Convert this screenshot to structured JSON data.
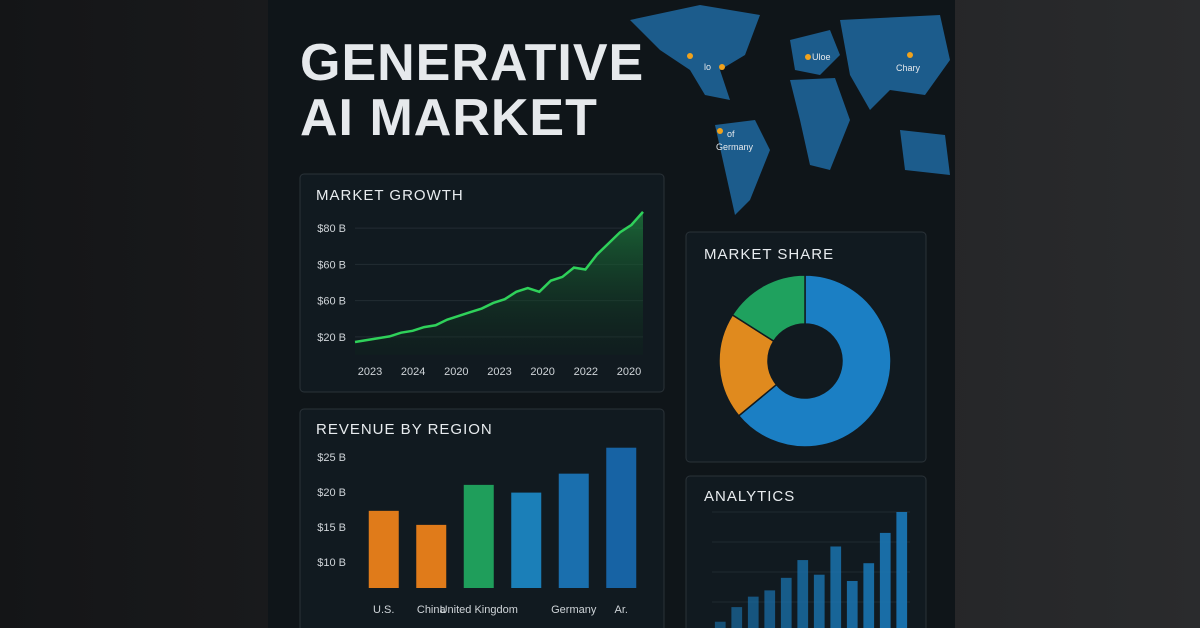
{
  "title_lines": [
    "GENERATIVE",
    "AI MARKET"
  ],
  "map_labels": [
    "lo",
    "Uloe",
    "Chary",
    "of",
    "Germany"
  ],
  "chart_data": [
    {
      "type": "line",
      "title": "MARKET GROWTH",
      "x_labels": [
        "2023",
        "2024",
        "2020",
        "2023",
        "2020",
        "2022",
        "2020"
      ],
      "ytick_labels": [
        "$80 B",
        "$60 B",
        "$60 B",
        "$20 B"
      ],
      "ylim": [
        10,
        88
      ],
      "color": "#2fd15a",
      "values": [
        17,
        18,
        19,
        20,
        22,
        23,
        25,
        26,
        29,
        31,
        33,
        35,
        38,
        40,
        44,
        46,
        44,
        50,
        52,
        57,
        56,
        64,
        70,
        76,
        80,
        87
      ]
    },
    {
      "type": "bar",
      "title": "REVENUE BY REGION",
      "categories": [
        "U.S.",
        "China",
        "United Kingdom",
        null,
        "Germany",
        "Ar."
      ],
      "values": [
        17.3,
        15.3,
        21.0,
        19.9,
        22.6,
        26.3
      ],
      "colors": [
        "#e07b1a",
        "#e07b1a",
        "#1f9e5b",
        "#1b7fb8",
        "#1a6fae",
        "#1763a4"
      ],
      "ylim": [
        6.3,
        26.4
      ],
      "yticks": [
        {
          "value": 10,
          "label": "$10 B"
        },
        {
          "value": 15,
          "label": "$15 B"
        },
        {
          "value": 20,
          "label": "$20 B"
        },
        {
          "value": 25,
          "label": "$25 B"
        }
      ]
    },
    {
      "type": "donut",
      "title": "MARKET SHARE",
      "values": [
        64,
        20,
        16
      ],
      "colors": [
        "#1b7fc4",
        "#e08a1e",
        "#1fa15e"
      ]
    },
    {
      "type": "bar",
      "title": "ANALYTICS",
      "color": "#1a74b0",
      "values": [
        6,
        20,
        30,
        36,
        48,
        65,
        51,
        78,
        45,
        62,
        91,
        111
      ]
    }
  ]
}
